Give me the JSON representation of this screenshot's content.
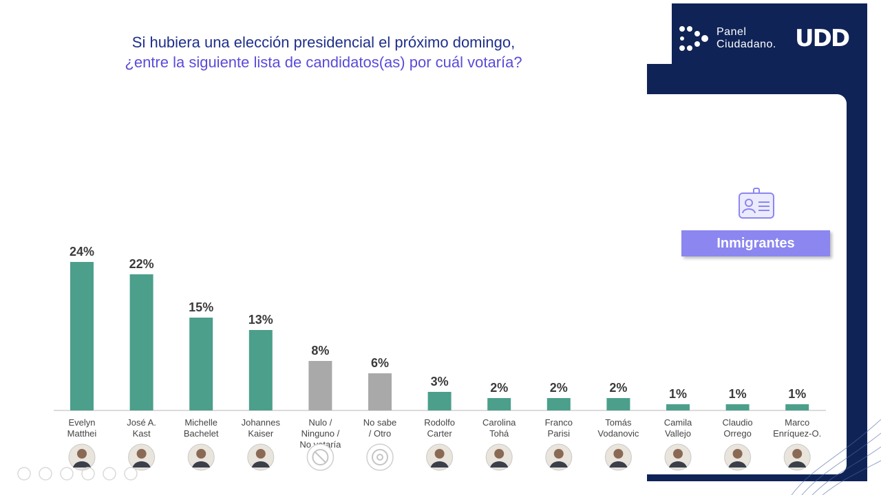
{
  "title": {
    "line1": "Si hubiera una elección presidencial el próximo domingo,",
    "line2": "¿entre la siguiente lista de candidatos(as) por cuál votaría?"
  },
  "logo": {
    "panel_line1": "Panel",
    "panel_line2": "Ciudadano.",
    "brand": "UDD"
  },
  "segment": {
    "label": "Inmigrantes",
    "icon": "id-card-icon"
  },
  "colors": {
    "candidate_bar": "#4b9f8b",
    "other_bar": "#a9a9a9",
    "dark_panel": "#0f2357",
    "title_primary": "#1f2f8a",
    "title_secondary": "#5a4bd8",
    "segment_badge": "#8b86f0"
  },
  "chart_data": {
    "type": "bar",
    "title": "Si hubiera una elección presidencial el próximo domingo, ¿entre la siguiente lista de candidatos(as) por cuál votaría?",
    "categories": [
      [
        "Evelyn",
        "Matthei"
      ],
      [
        "José A.",
        "Kast"
      ],
      [
        "Michelle",
        "Bachelet"
      ],
      [
        "Johannes",
        "Kaiser"
      ],
      [
        "Nulo /",
        "Ninguno /",
        "No votaría"
      ],
      [
        "No sabe",
        "/ Otro"
      ],
      [
        "Rodolfo",
        "Carter"
      ],
      [
        "Carolina",
        "Tohá"
      ],
      [
        "Franco",
        "Parisi"
      ],
      [
        "Tomás",
        "Vodanovic"
      ],
      [
        "Camila",
        "Vallejo"
      ],
      [
        "Claudio",
        "Orrego"
      ],
      [
        "Marco",
        "Enríquez-O."
      ]
    ],
    "values": [
      24,
      22,
      15,
      13,
      8,
      6,
      3,
      2,
      2,
      2,
      1,
      1,
      1
    ],
    "value_labels": [
      "24%",
      "22%",
      "15%",
      "13%",
      "8%",
      "6%",
      "3%",
      "2%",
      "2%",
      "2%",
      "1%",
      "1%",
      "1%"
    ],
    "bar_kind": [
      "candidate",
      "candidate",
      "candidate",
      "candidate",
      "other",
      "other",
      "candidate",
      "candidate",
      "candidate",
      "candidate",
      "candidate",
      "candidate",
      "candidate"
    ],
    "icons": [
      "avatar-icon",
      "avatar-icon",
      "avatar-icon",
      "avatar-icon",
      "prohibited-icon",
      "question-icon",
      "avatar-icon",
      "avatar-icon",
      "avatar-icon",
      "avatar-icon",
      "avatar-icon",
      "avatar-icon",
      "avatar-icon"
    ],
    "unit": "%",
    "ylim": [
      0,
      24
    ],
    "grid": false,
    "legend": "none"
  }
}
